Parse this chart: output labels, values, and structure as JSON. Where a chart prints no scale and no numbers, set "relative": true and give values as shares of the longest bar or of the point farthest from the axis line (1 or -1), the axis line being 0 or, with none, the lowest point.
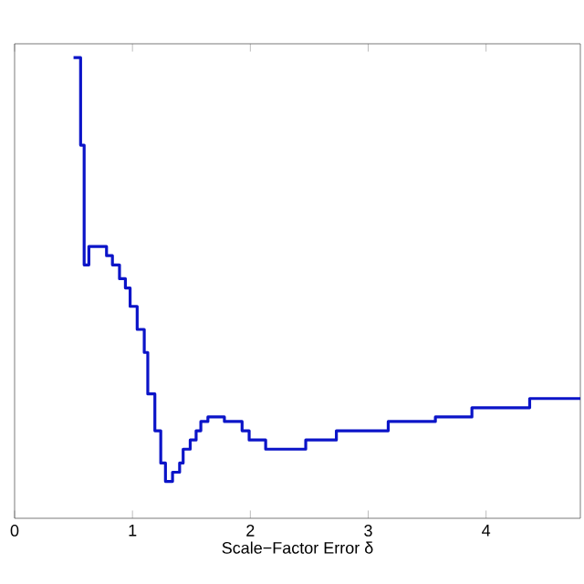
{
  "chart_data": {
    "type": "step",
    "xlabel": "Scale−Factor Error δ",
    "relative": true,
    "tick_labels": "x",
    "xlim": [
      0,
      4.8
    ],
    "xticks": [
      0,
      1,
      2,
      3,
      4
    ],
    "series": [
      {
        "color": "#0b14c8",
        "x": [
          0.5,
          0.56,
          0.59,
          0.63,
          0.78,
          0.83,
          0.89,
          0.94,
          0.98,
          1.04,
          1.1,
          1.13,
          1.19,
          1.24,
          1.28,
          1.34,
          1.4,
          1.43,
          1.49,
          1.54,
          1.58,
          1.64,
          1.78,
          1.93,
          1.99,
          2.13,
          2.47,
          2.73,
          3.17,
          3.57,
          3.88,
          4.37,
          4.8
        ],
        "values": [
          1.0,
          0.81,
          0.55,
          0.59,
          0.57,
          0.55,
          0.52,
          0.5,
          0.46,
          0.41,
          0.36,
          0.27,
          0.19,
          0.12,
          0.08,
          0.1,
          0.12,
          0.15,
          0.17,
          0.19,
          0.21,
          0.22,
          0.21,
          0.19,
          0.17,
          0.15,
          0.17,
          0.19,
          0.21,
          0.22,
          0.24,
          0.26,
          0.26
        ]
      }
    ]
  }
}
